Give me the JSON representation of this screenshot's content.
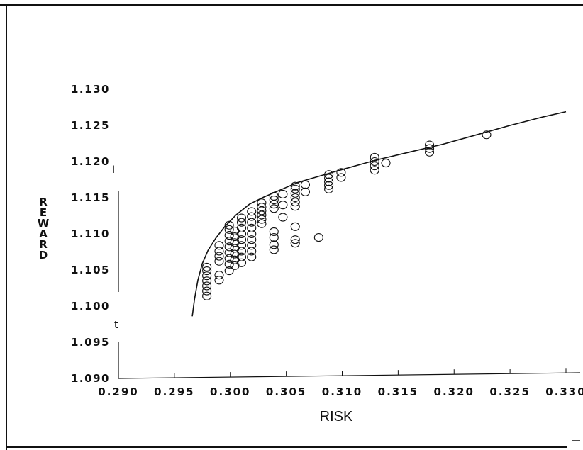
{
  "chart_data": {
    "type": "scatter",
    "title": "",
    "xlabel": "RISK",
    "ylabel": "REWARD",
    "xlim": [
      0.29,
      0.33
    ],
    "ylim": [
      1.09,
      1.13
    ],
    "grid": false,
    "x_ticks": [
      "0.290",
      "0.295",
      "0.300",
      "0.305",
      "0.310",
      "0.315",
      "0.320",
      "0.325",
      "0.330"
    ],
    "y_ticks": [
      "1.090",
      "1.095",
      "1.100",
      "1.105",
      "1.110",
      "1.115",
      "1.120",
      "1.125",
      "1.130"
    ],
    "stray_marks": [
      "I",
      "t"
    ],
    "series": [
      {
        "kind": "line",
        "points": [
          [
            0.2966,
            1.0986
          ],
          [
            0.2968,
            1.101
          ],
          [
            0.2971,
            1.1036
          ],
          [
            0.2975,
            1.1059
          ],
          [
            0.298,
            1.1077
          ],
          [
            0.2987,
            1.1094
          ],
          [
            0.2995,
            1.111
          ],
          [
            0.3005,
            1.1126
          ],
          [
            0.3017,
            1.1141
          ],
          [
            0.303,
            1.1151
          ],
          [
            0.3045,
            1.1161
          ],
          [
            0.306,
            1.1171
          ],
          [
            0.308,
            1.118
          ],
          [
            0.31,
            1.1189
          ],
          [
            0.313,
            1.1202
          ],
          [
            0.316,
            1.1213
          ],
          [
            0.319,
            1.1224
          ],
          [
            0.322,
            1.1237
          ],
          [
            0.325,
            1.125
          ],
          [
            0.328,
            1.1262
          ],
          [
            0.33,
            1.1269
          ]
        ]
      },
      {
        "kind": "scatter",
        "points": [
          [
            0.2979,
            1.1014
          ],
          [
            0.2979,
            1.1021
          ],
          [
            0.2979,
            1.1028
          ],
          [
            0.2979,
            1.1035
          ],
          [
            0.2979,
            1.1042
          ],
          [
            0.2979,
            1.1049
          ],
          [
            0.2979,
            1.1054
          ],
          [
            0.299,
            1.1036
          ],
          [
            0.299,
            1.1043
          ],
          [
            0.299,
            1.1062
          ],
          [
            0.299,
            1.1069
          ],
          [
            0.299,
            1.1076
          ],
          [
            0.299,
            1.1084
          ],
          [
            0.2999,
            1.1049
          ],
          [
            0.2999,
            1.1058
          ],
          [
            0.2999,
            1.1066
          ],
          [
            0.2999,
            1.1074
          ],
          [
            0.2999,
            1.1082
          ],
          [
            0.2999,
            1.109
          ],
          [
            0.2999,
            1.1098
          ],
          [
            0.2999,
            1.1106
          ],
          [
            0.2999,
            1.1112
          ],
          [
            0.3004,
            1.1056
          ],
          [
            0.3004,
            1.1064
          ],
          [
            0.3004,
            1.1072
          ],
          [
            0.3004,
            1.108
          ],
          [
            0.3004,
            1.1088
          ],
          [
            0.3004,
            1.1096
          ],
          [
            0.3004,
            1.1104
          ],
          [
            0.301,
            1.106
          ],
          [
            0.301,
            1.1068
          ],
          [
            0.301,
            1.1076
          ],
          [
            0.301,
            1.1084
          ],
          [
            0.301,
            1.1092
          ],
          [
            0.301,
            1.11
          ],
          [
            0.301,
            1.1108
          ],
          [
            0.301,
            1.1116
          ],
          [
            0.301,
            1.1122
          ],
          [
            0.3019,
            1.1068
          ],
          [
            0.3019,
            1.1076
          ],
          [
            0.3019,
            1.1084
          ],
          [
            0.3019,
            1.1092
          ],
          [
            0.3019,
            1.11
          ],
          [
            0.3019,
            1.1108
          ],
          [
            0.3019,
            1.1116
          ],
          [
            0.3019,
            1.1124
          ],
          [
            0.3019,
            1.1131
          ],
          [
            0.3028,
            1.1114
          ],
          [
            0.3028,
            1.112
          ],
          [
            0.3028,
            1.1126
          ],
          [
            0.3028,
            1.1132
          ],
          [
            0.3028,
            1.1137
          ],
          [
            0.3028,
            1.1143
          ],
          [
            0.3039,
            1.1078
          ],
          [
            0.3039,
            1.1085
          ],
          [
            0.3039,
            1.1095
          ],
          [
            0.3039,
            1.1103
          ],
          [
            0.3039,
            1.1135
          ],
          [
            0.3039,
            1.1141
          ],
          [
            0.3039,
            1.1147
          ],
          [
            0.3039,
            1.1152
          ],
          [
            0.3047,
            1.1123
          ],
          [
            0.3047,
            1.114
          ],
          [
            0.3047,
            1.1155
          ],
          [
            0.3058,
            1.1087
          ],
          [
            0.3058,
            1.1092
          ],
          [
            0.3058,
            1.111
          ],
          [
            0.3058,
            1.1138
          ],
          [
            0.3058,
            1.1144
          ],
          [
            0.3058,
            1.115
          ],
          [
            0.3058,
            1.1156
          ],
          [
            0.3058,
            1.1162
          ],
          [
            0.3058,
            1.1166
          ],
          [
            0.3067,
            1.1158
          ],
          [
            0.3067,
            1.1168
          ],
          [
            0.3079,
            1.1095
          ],
          [
            0.3088,
            1.1162
          ],
          [
            0.3088,
            1.1167
          ],
          [
            0.3088,
            1.1172
          ],
          [
            0.3088,
            1.1177
          ],
          [
            0.3088,
            1.1182
          ],
          [
            0.3099,
            1.1178
          ],
          [
            0.3099,
            1.1185
          ],
          [
            0.3129,
            1.1188
          ],
          [
            0.3129,
            1.1194
          ],
          [
            0.3129,
            1.12
          ],
          [
            0.3129,
            1.1206
          ],
          [
            0.3139,
            1.1198
          ],
          [
            0.3178,
            1.1213
          ],
          [
            0.3178,
            1.1218
          ],
          [
            0.3178,
            1.1223
          ],
          [
            0.3229,
            1.1237
          ]
        ]
      }
    ]
  }
}
